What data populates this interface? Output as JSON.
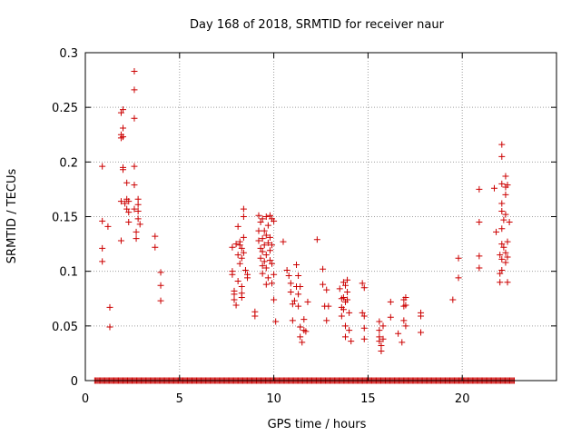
{
  "chart_data": {
    "type": "scatter",
    "title": "Day 168 of 2018, SRMTID for receiver naur",
    "xlabel": "GPS time / hours",
    "ylabel": "SRMTID / TECUs",
    "xlim": [
      0,
      25
    ],
    "ylim": [
      0,
      0.3
    ],
    "x_ticks": [
      0,
      5,
      10,
      15,
      20
    ],
    "x_tick_labels": [
      "0",
      "5",
      "10",
      "15",
      "20"
    ],
    "y_ticks": [
      0,
      0.05,
      0.1,
      0.15,
      0.2,
      0.25,
      0.3
    ],
    "y_tick_labels": [
      "0",
      "0.05",
      "0.1",
      "0.15",
      "0.2",
      "0.25",
      "0.3"
    ],
    "grid": true,
    "marker": "+",
    "color": "#cc0000",
    "baseline": {
      "y": 0,
      "x_start": 0.5,
      "x_end": 22.8
    },
    "series": [
      {
        "name": "SRMTID",
        "points": [
          [
            0.9,
            0.196
          ],
          [
            0.9,
            0.146
          ],
          [
            0.9,
            0.121
          ],
          [
            0.9,
            0.109
          ],
          [
            1.2,
            0.141
          ],
          [
            1.3,
            0.067
          ],
          [
            1.3,
            0.049
          ],
          [
            1.9,
            0.245
          ],
          [
            1.9,
            0.225
          ],
          [
            1.9,
            0.222
          ],
          [
            1.9,
            0.164
          ],
          [
            1.9,
            0.128
          ],
          [
            2.0,
            0.248
          ],
          [
            2.0,
            0.231
          ],
          [
            2.0,
            0.223
          ],
          [
            2.0,
            0.195
          ],
          [
            2.0,
            0.193
          ],
          [
            2.1,
            0.162
          ],
          [
            2.2,
            0.181
          ],
          [
            2.2,
            0.166
          ],
          [
            2.2,
            0.157
          ],
          [
            2.3,
            0.164
          ],
          [
            2.3,
            0.154
          ],
          [
            2.3,
            0.145
          ],
          [
            2.6,
            0.283
          ],
          [
            2.6,
            0.266
          ],
          [
            2.6,
            0.24
          ],
          [
            2.6,
            0.196
          ],
          [
            2.6,
            0.179
          ],
          [
            2.6,
            0.157
          ],
          [
            2.7,
            0.136
          ],
          [
            2.7,
            0.13
          ],
          [
            2.8,
            0.166
          ],
          [
            2.8,
            0.161
          ],
          [
            2.8,
            0.155
          ],
          [
            2.8,
            0.148
          ],
          [
            2.9,
            0.143
          ],
          [
            3.7,
            0.132
          ],
          [
            3.7,
            0.122
          ],
          [
            4.0,
            0.099
          ],
          [
            4.0,
            0.087
          ],
          [
            4.0,
            0.073
          ],
          [
            7.8,
            0.122
          ],
          [
            7.8,
            0.1
          ],
          [
            7.8,
            0.097
          ],
          [
            7.9,
            0.082
          ],
          [
            7.9,
            0.079
          ],
          [
            7.9,
            0.074
          ],
          [
            8.0,
            0.069
          ],
          [
            8.0,
            0.125
          ],
          [
            8.1,
            0.141
          ],
          [
            8.1,
            0.115
          ],
          [
            8.1,
            0.091
          ],
          [
            8.2,
            0.127
          ],
          [
            8.2,
            0.124
          ],
          [
            8.2,
            0.107
          ],
          [
            8.3,
            0.121
          ],
          [
            8.3,
            0.112
          ],
          [
            8.3,
            0.086
          ],
          [
            8.3,
            0.08
          ],
          [
            8.3,
            0.076
          ],
          [
            8.4,
            0.157
          ],
          [
            8.4,
            0.15
          ],
          [
            8.4,
            0.131
          ],
          [
            8.4,
            0.117
          ],
          [
            8.5,
            0.101
          ],
          [
            8.6,
            0.097
          ],
          [
            8.6,
            0.094
          ],
          [
            9.0,
            0.063
          ],
          [
            9.0,
            0.059
          ],
          [
            9.2,
            0.151
          ],
          [
            9.2,
            0.137
          ],
          [
            9.2,
            0.128
          ],
          [
            9.3,
            0.145
          ],
          [
            9.3,
            0.121
          ],
          [
            9.3,
            0.112
          ],
          [
            9.4,
            0.148
          ],
          [
            9.4,
            0.13
          ],
          [
            9.4,
            0.118
          ],
          [
            9.4,
            0.105
          ],
          [
            9.4,
            0.098
          ],
          [
            9.5,
            0.137
          ],
          [
            9.5,
            0.124
          ],
          [
            9.5,
            0.109
          ],
          [
            9.6,
            0.15
          ],
          [
            9.6,
            0.133
          ],
          [
            9.6,
            0.115
          ],
          [
            9.6,
            0.103
          ],
          [
            9.6,
            0.088
          ],
          [
            9.7,
            0.142
          ],
          [
            9.7,
            0.126
          ],
          [
            9.7,
            0.094
          ],
          [
            9.8,
            0.151
          ],
          [
            9.8,
            0.131
          ],
          [
            9.8,
            0.119
          ],
          [
            9.8,
            0.11
          ],
          [
            9.9,
            0.148
          ],
          [
            9.9,
            0.124
          ],
          [
            9.9,
            0.107
          ],
          [
            9.9,
            0.089
          ],
          [
            10.0,
            0.146
          ],
          [
            10.0,
            0.097
          ],
          [
            10.0,
            0.074
          ],
          [
            10.1,
            0.054
          ],
          [
            10.5,
            0.127
          ],
          [
            10.7,
            0.101
          ],
          [
            10.8,
            0.096
          ],
          [
            10.9,
            0.089
          ],
          [
            10.9,
            0.081
          ],
          [
            11.0,
            0.07
          ],
          [
            11.0,
            0.055
          ],
          [
            11.1,
            0.073
          ],
          [
            11.2,
            0.106
          ],
          [
            11.2,
            0.086
          ],
          [
            11.3,
            0.096
          ],
          [
            11.3,
            0.079
          ],
          [
            11.3,
            0.068
          ],
          [
            11.4,
            0.086
          ],
          [
            11.4,
            0.049
          ],
          [
            11.4,
            0.04
          ],
          [
            11.5,
            0.035
          ],
          [
            11.6,
            0.046
          ],
          [
            11.6,
            0.056
          ],
          [
            11.7,
            0.045
          ],
          [
            11.8,
            0.072
          ],
          [
            12.3,
            0.129
          ],
          [
            12.6,
            0.102
          ],
          [
            12.6,
            0.088
          ],
          [
            12.7,
            0.068
          ],
          [
            12.8,
            0.083
          ],
          [
            12.8,
            0.055
          ],
          [
            12.9,
            0.068
          ],
          [
            13.5,
            0.084
          ],
          [
            13.6,
            0.075
          ],
          [
            13.6,
            0.067
          ],
          [
            13.6,
            0.059
          ],
          [
            13.7,
            0.09
          ],
          [
            13.7,
            0.076
          ],
          [
            13.7,
            0.065
          ],
          [
            13.8,
            0.087
          ],
          [
            13.8,
            0.072
          ],
          [
            13.8,
            0.05
          ],
          [
            13.8,
            0.04
          ],
          [
            13.9,
            0.092
          ],
          [
            13.9,
            0.081
          ],
          [
            13.9,
            0.074
          ],
          [
            14.0,
            0.062
          ],
          [
            14.0,
            0.046
          ],
          [
            14.1,
            0.036
          ],
          [
            14.7,
            0.089
          ],
          [
            14.7,
            0.062
          ],
          [
            14.8,
            0.085
          ],
          [
            14.8,
            0.059
          ],
          [
            14.8,
            0.048
          ],
          [
            14.8,
            0.038
          ],
          [
            15.6,
            0.054
          ],
          [
            15.6,
            0.046
          ],
          [
            15.6,
            0.04
          ],
          [
            15.6,
            0.036
          ],
          [
            15.7,
            0.032
          ],
          [
            15.7,
            0.027
          ],
          [
            15.8,
            0.05
          ],
          [
            15.8,
            0.038
          ],
          [
            16.2,
            0.072
          ],
          [
            16.2,
            0.058
          ],
          [
            16.6,
            0.043
          ],
          [
            16.8,
            0.035
          ],
          [
            16.9,
            0.074
          ],
          [
            16.9,
            0.068
          ],
          [
            16.9,
            0.055
          ],
          [
            17.0,
            0.076
          ],
          [
            17.0,
            0.069
          ],
          [
            17.0,
            0.05
          ],
          [
            17.8,
            0.062
          ],
          [
            17.8,
            0.059
          ],
          [
            17.8,
            0.044
          ],
          [
            19.5,
            0.074
          ],
          [
            19.8,
            0.112
          ],
          [
            19.8,
            0.094
          ],
          [
            20.9,
            0.175
          ],
          [
            20.9,
            0.145
          ],
          [
            20.9,
            0.114
          ],
          [
            20.9,
            0.103
          ],
          [
            21.7,
            0.176
          ],
          [
            21.8,
            0.136
          ],
          [
            22.0,
            0.115
          ],
          [
            22.0,
            0.098
          ],
          [
            22.0,
            0.09
          ],
          [
            22.1,
            0.216
          ],
          [
            22.1,
            0.205
          ],
          [
            22.1,
            0.18
          ],
          [
            22.1,
            0.162
          ],
          [
            22.1,
            0.155
          ],
          [
            22.1,
            0.139
          ],
          [
            22.1,
            0.125
          ],
          [
            22.1,
            0.111
          ],
          [
            22.1,
            0.101
          ],
          [
            22.2,
            0.147
          ],
          [
            22.2,
            0.122
          ],
          [
            22.3,
            0.187
          ],
          [
            22.3,
            0.177
          ],
          [
            22.3,
            0.17
          ],
          [
            22.3,
            0.152
          ],
          [
            22.3,
            0.117
          ],
          [
            22.3,
            0.108
          ],
          [
            22.4,
            0.179
          ],
          [
            22.4,
            0.127
          ],
          [
            22.4,
            0.113
          ],
          [
            22.4,
            0.09
          ],
          [
            22.5,
            0.145
          ]
        ]
      }
    ]
  }
}
